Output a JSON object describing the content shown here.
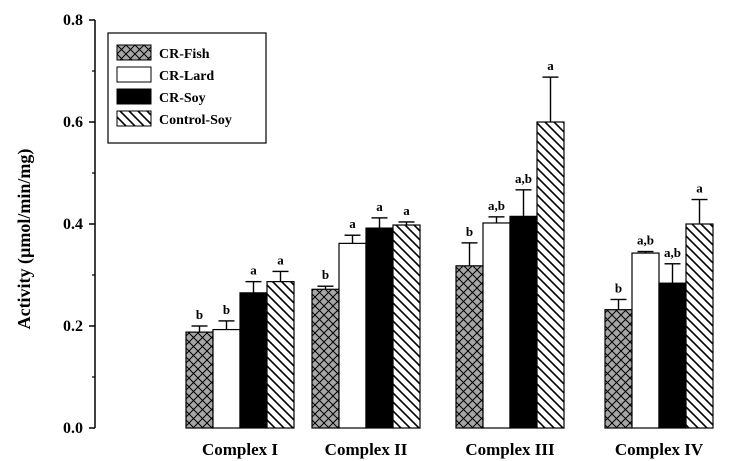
{
  "chart_data": {
    "type": "bar",
    "title": "",
    "xlabel": "",
    "ylabel": "Activity (µmol/min/mg)",
    "ylim": [
      0,
      0.8
    ],
    "yticks": [
      "0.0",
      "0.2",
      "0.4",
      "0.6",
      "0.8"
    ],
    "ytick_values": [
      0,
      0.2,
      0.4,
      0.6,
      0.8
    ],
    "categories": [
      "Complex I",
      "Complex II",
      "Complex III",
      "Complex IV"
    ],
    "legend_position": "top-left",
    "grid": false,
    "series": [
      {
        "name": "CR-Fish",
        "pattern": "crosshatch-gray",
        "values": [
          0.188,
          0.272,
          0.318,
          0.232
        ],
        "errors": [
          0.012,
          0.006,
          0.045,
          0.02
        ],
        "significance": [
          "b",
          "b",
          "b",
          "b"
        ]
      },
      {
        "name": "CR-Lard",
        "pattern": "white",
        "values": [
          0.193,
          0.362,
          0.402,
          0.343
        ],
        "errors": [
          0.017,
          0.016,
          0.012,
          0.003
        ],
        "significance": [
          "b",
          "a",
          "a,b",
          "a,b"
        ]
      },
      {
        "name": "CR-Soy",
        "pattern": "black",
        "values": [
          0.265,
          0.392,
          0.415,
          0.284
        ],
        "errors": [
          0.022,
          0.02,
          0.052,
          0.038
        ],
        "significance": [
          "a",
          "a",
          "a,b",
          "a,b"
        ]
      },
      {
        "name": "Control-Soy",
        "pattern": "diagonal-hatch",
        "values": [
          0.287,
          0.398,
          0.6,
          0.4
        ],
        "errors": [
          0.02,
          0.006,
          0.088,
          0.048
        ],
        "significance": [
          "a",
          "a",
          "a",
          "a"
        ]
      }
    ]
  }
}
